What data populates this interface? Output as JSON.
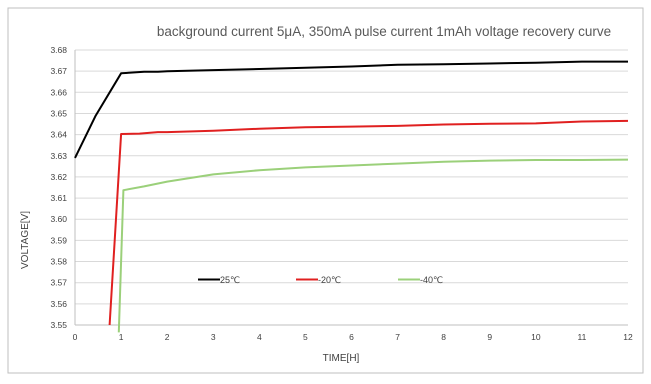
{
  "chart_data": {
    "type": "line",
    "title": "background current 5μA, 350mA pulse current 1mAh voltage recovery curve",
    "xlabel": "TIME[H]",
    "ylabel": "VOLTAGE[V]",
    "xlim": [
      0,
      12
    ],
    "ylim": [
      3.55,
      3.68
    ],
    "x_ticks": [
      "0",
      "1",
      "2",
      "3",
      "4",
      "5",
      "6",
      "7",
      "8",
      "9",
      "10",
      "11",
      "12"
    ],
    "y_ticks": [
      "3.55",
      "3.56",
      "3.57",
      "3.58",
      "3.59",
      "3.60",
      "3.61",
      "3.62",
      "3.63",
      "3.64",
      "3.65",
      "3.66",
      "3.67",
      "3.68"
    ],
    "grid": "horizontal",
    "legend_position": "inside-bottom-center",
    "series": [
      {
        "name": "25℃",
        "color": "#000000",
        "x": [
          0,
          0.45,
          1.0,
          1.5,
          1.8,
          2.0,
          3.0,
          4.0,
          5.0,
          6.0,
          7.0,
          8.0,
          9.0,
          10.0,
          11.0,
          12.0
        ],
        "y": [
          3.629,
          3.649,
          3.669,
          3.6697,
          3.6697,
          3.67,
          3.6705,
          3.671,
          3.6716,
          3.6722,
          3.673,
          3.6733,
          3.6736,
          3.674,
          3.6745,
          3.6745
        ]
      },
      {
        "name": "-20℃",
        "color": "#e02020",
        "x": [
          0.75,
          1.0,
          1.4,
          1.8,
          2.0,
          3.0,
          4.0,
          5.0,
          6.0,
          7.0,
          8.0,
          9.0,
          10.0,
          11.0,
          12.0
        ],
        "y": [
          3.55,
          3.6403,
          3.6405,
          3.6412,
          3.6412,
          3.6418,
          3.6428,
          3.6435,
          3.6438,
          3.6441,
          3.6448,
          3.6451,
          3.6453,
          3.6462,
          3.6465
        ]
      },
      {
        "name": "-40℃",
        "color": "#9bd07a",
        "x": [
          0.95,
          1.05,
          1.5,
          2.0,
          3.0,
          4.0,
          5.0,
          6.0,
          7.0,
          8.0,
          9.0,
          10.0,
          11.0,
          12.0
        ],
        "y": [
          3.5465,
          3.6137,
          3.6155,
          3.6178,
          3.6212,
          3.6232,
          3.6245,
          3.6254,
          3.6263,
          3.6272,
          3.6277,
          3.628,
          3.628,
          3.6282
        ]
      }
    ]
  }
}
